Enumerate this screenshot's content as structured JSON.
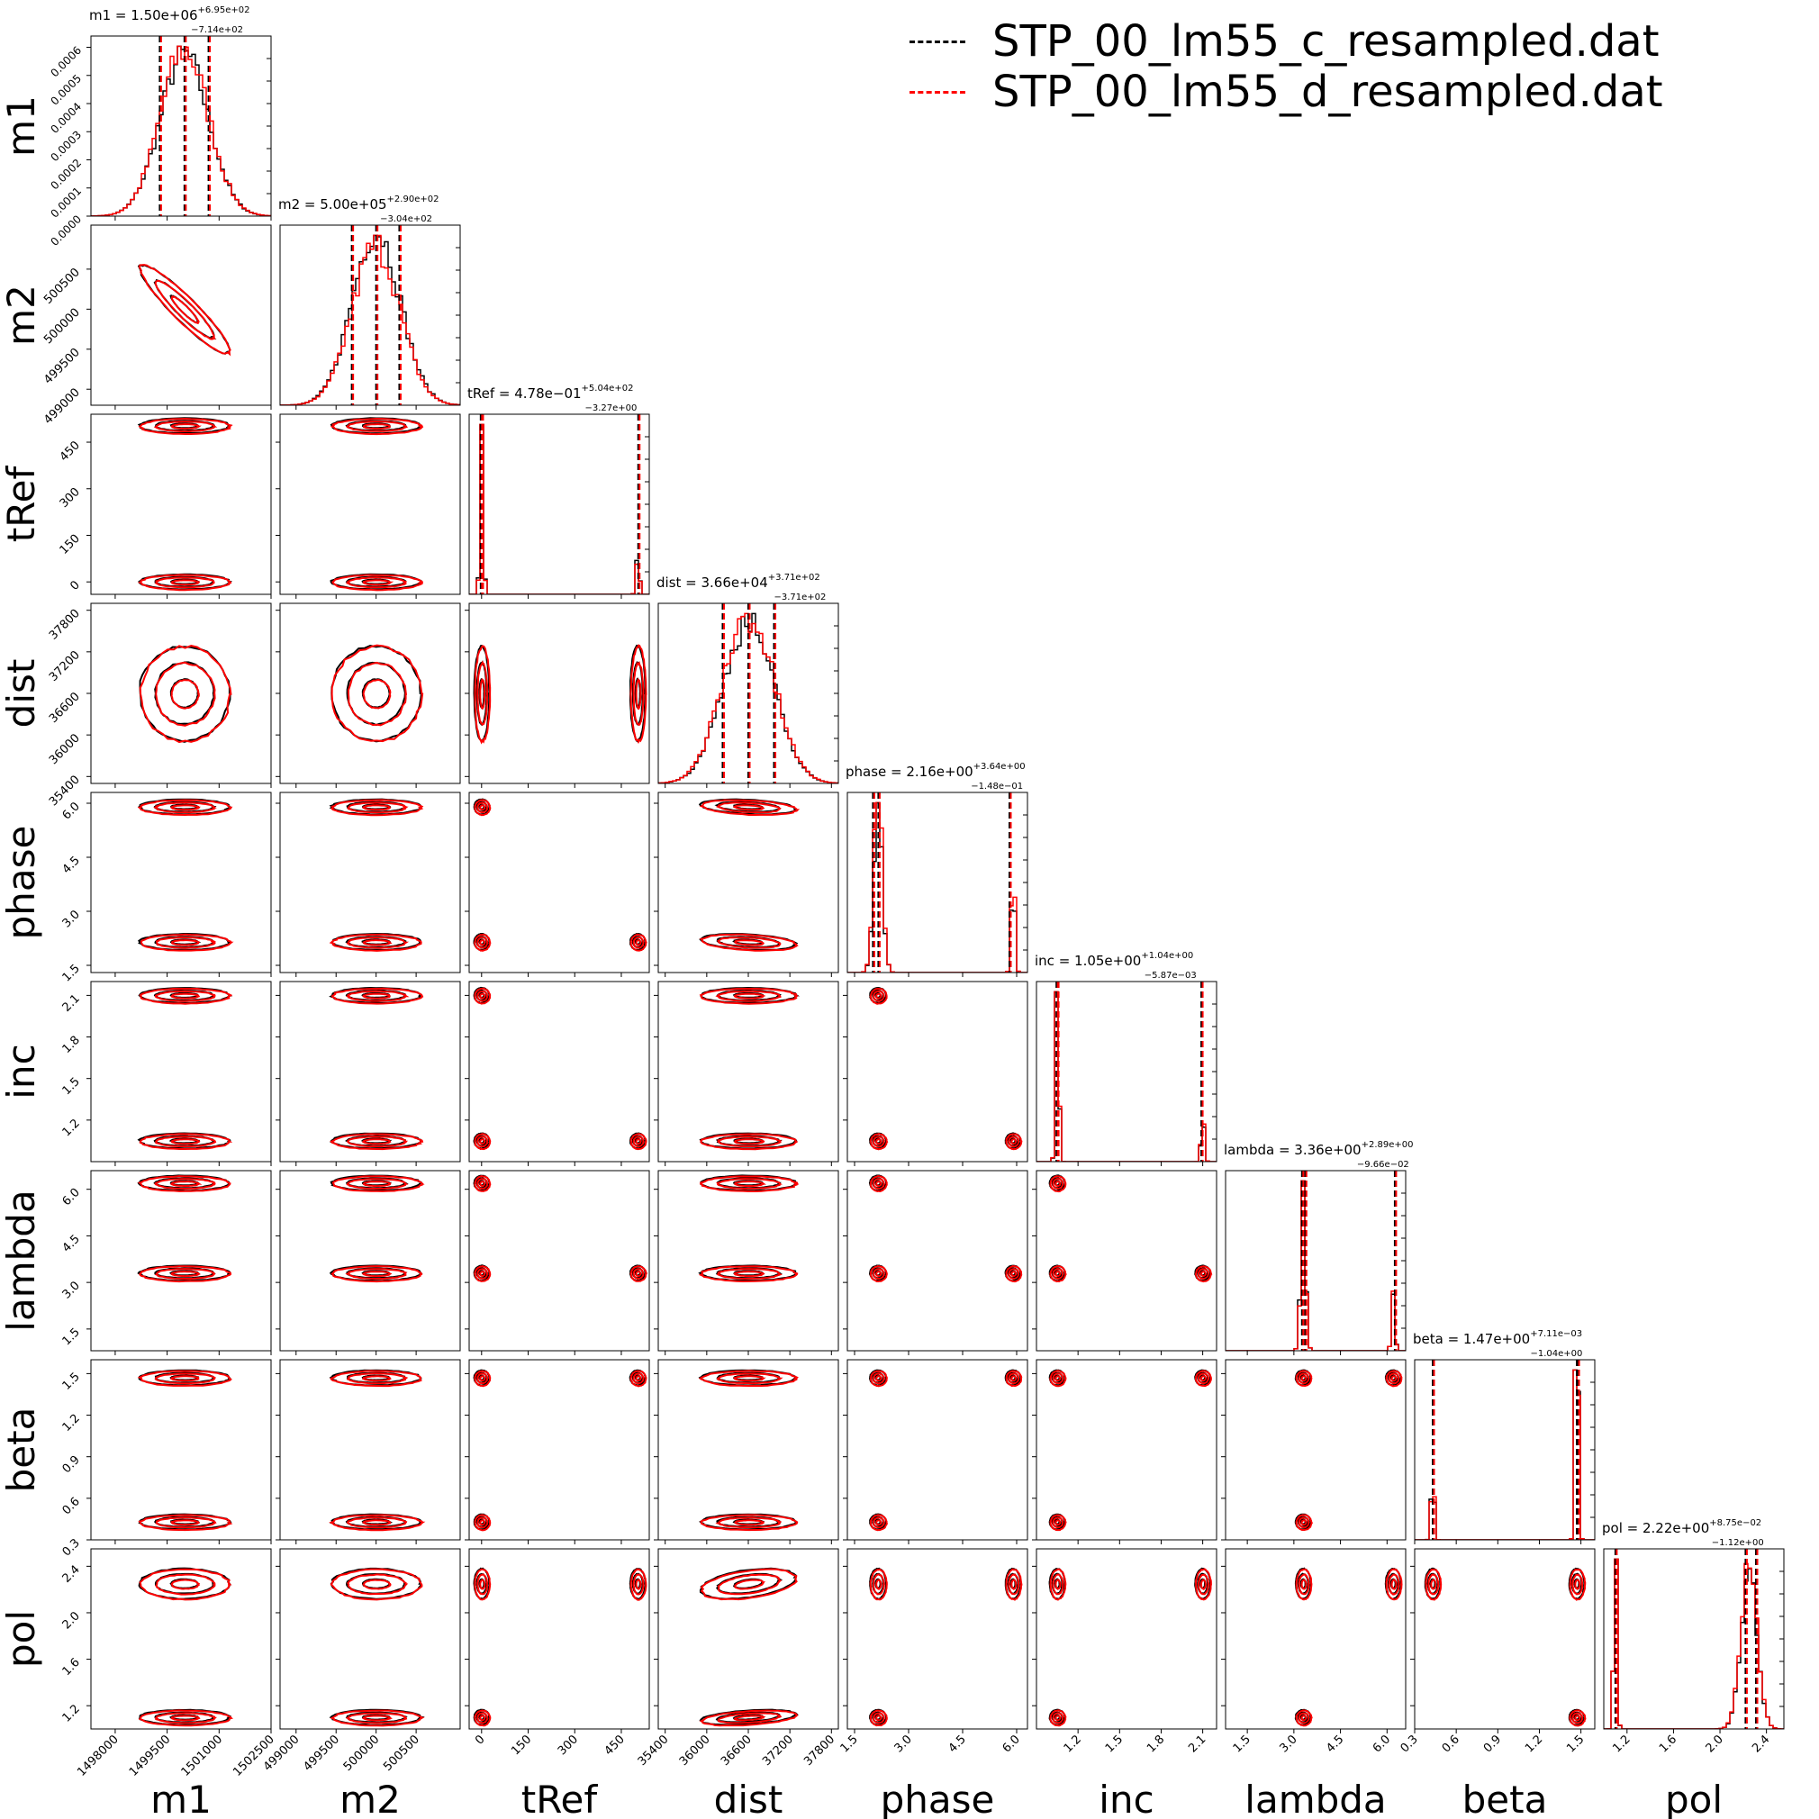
{
  "legend": [
    {
      "label": "STP_00_lm55_c_resampled.dat",
      "color": "#000000"
    },
    {
      "label": "STP_00_lm55_d_resampled.dat",
      "color": "#ff0000"
    }
  ],
  "colors": {
    "series_c": "#000000",
    "series_d": "#ff0000"
  },
  "chart_data": {
    "type": "corner",
    "parameters": [
      {
        "name": "m1",
        "range": [
          1497300,
          1502500
        ],
        "ticks": [
          1498000,
          1499500,
          1501000,
          1502500
        ],
        "tick_labels": [
          "1498000",
          "1499500",
          "1501000",
          "1502500"
        ],
        "title": "m1 = 1.50e+06",
        "sup": "+6.95e+02",
        "sub": "−7.14e+02",
        "median": 1500000,
        "q16": 1499286,
        "q84": 1500695,
        "hist_ylim": [
          0,
          0.00064
        ],
        "hist_ticks": [
          0.0,
          0.0001,
          0.0002,
          0.0003,
          0.0004,
          0.0005,
          0.0006
        ],
        "hist_tick_labels": [
          "0.0000",
          "0.0001",
          "0.0002",
          "0.0003",
          "0.0004",
          "0.0005",
          "0.0006"
        ],
        "modes": [
          {
            "center": 1500000,
            "sigma": 700,
            "weight": 1.0
          }
        ]
      },
      {
        "name": "m2",
        "range": [
          498800,
          501050
        ],
        "ticks": [
          499000,
          499500,
          500000,
          500500
        ],
        "tick_labels": [
          "499000",
          "499500",
          "500000",
          "500500"
        ],
        "left_tick_labels": [
          "0.0000",
          "500500",
          "500000",
          "499500",
          "499000"
        ],
        "title": "m2 = 5.00e+05",
        "sup": "+2.90e+02",
        "sub": "−3.04e+02",
        "median": 500000,
        "q16": 499696,
        "q84": 500290,
        "modes": [
          {
            "center": 500000,
            "sigma": 300,
            "weight": 1.0
          }
        ]
      },
      {
        "name": "tRef",
        "range": [
          -40,
          540
        ],
        "ticks": [
          0,
          150,
          300,
          450
        ],
        "tick_labels": [
          "0",
          "150",
          "300",
          "450"
        ],
        "title": "tRef = 4.78e−01",
        "sup": "+5.04e+02",
        "sub": "−3.27e+00",
        "median": 0.478,
        "q16": -2.8,
        "q84": 504.5,
        "modes": [
          {
            "center": 0.5,
            "sigma": 5,
            "weight": 0.8
          },
          {
            "center": 503,
            "sigma": 5,
            "weight": 0.2
          }
        ]
      },
      {
        "name": "dist",
        "range": [
          35300,
          37900
        ],
        "ticks": [
          35400,
          36000,
          36600,
          37200,
          37800
        ],
        "tick_labels": [
          "35400",
          "36000",
          "36600",
          "37200",
          "37800"
        ],
        "title": "dist = 3.66e+04",
        "sup": "+3.71e+02",
        "sub": "−3.71e+02",
        "median": 36600,
        "q16": 36229,
        "q84": 36971,
        "modes": [
          {
            "center": 36600,
            "sigma": 370,
            "weight": 1.0
          }
        ]
      },
      {
        "name": "phase",
        "range": [
          1.3,
          6.3
        ],
        "ticks": [
          1.5,
          3.0,
          4.5,
          6.0
        ],
        "tick_labels": [
          "1.5",
          "3.0",
          "4.5",
          "6.0"
        ],
        "title": "phase = 2.16e+00",
        "sup": "+3.64e+00",
        "sub": "−1.48e−01",
        "median": 2.16,
        "q16": 2.01,
        "q84": 5.8,
        "modes": [
          {
            "center": 2.15,
            "sigma": 0.12,
            "weight": 0.8
          },
          {
            "center": 5.9,
            "sigma": 0.05,
            "weight": 0.2
          }
        ]
      },
      {
        "name": "inc",
        "range": [
          0.9,
          2.2
        ],
        "ticks": [
          1.2,
          1.5,
          1.8,
          2.1
        ],
        "tick_labels": [
          "1.2",
          "1.5",
          "1.8",
          "2.1"
        ],
        "title": "inc = 1.05e+00",
        "sup": "+1.04e+00",
        "sub": "−5.87e−03",
        "median": 1.05,
        "q16": 1.044,
        "q84": 2.09,
        "modes": [
          {
            "center": 1.05,
            "sigma": 0.01,
            "weight": 0.8
          },
          {
            "center": 2.1,
            "sigma": 0.01,
            "weight": 0.2
          }
        ]
      },
      {
        "name": "lambda",
        "range": [
          0.8,
          6.6
        ],
        "ticks": [
          1.5,
          3.0,
          4.5,
          6.0
        ],
        "tick_labels": [
          "1.5",
          "3.0",
          "4.5",
          "6.0"
        ],
        "title": "lambda = 3.36e+00",
        "sup": "+2.89e+00",
        "sub": "−9.66e−02",
        "median": 3.36,
        "q16": 3.26,
        "q84": 6.25,
        "modes": [
          {
            "center": 3.3,
            "sigma": 0.08,
            "weight": 0.8
          },
          {
            "center": 6.2,
            "sigma": 0.05,
            "weight": 0.2
          }
        ]
      },
      {
        "name": "beta",
        "range": [
          0.3,
          1.6
        ],
        "ticks": [
          0.3,
          0.6,
          0.9,
          1.2,
          1.5
        ],
        "tick_labels": [
          "0.3",
          "0.6",
          "0.9",
          "1.2",
          "1.5"
        ],
        "title": "beta = 1.47e+00",
        "sup": "+7.11e−03",
        "sub": "−1.04e+00",
        "median": 1.47,
        "q16": 0.43,
        "q84": 1.477,
        "modes": [
          {
            "center": 0.43,
            "sigma": 0.008,
            "weight": 0.2
          },
          {
            "center": 1.47,
            "sigma": 0.008,
            "weight": 0.8
          }
        ]
      },
      {
        "name": "pol",
        "range": [
          1.0,
          2.55
        ],
        "ticks": [
          1.2,
          1.6,
          2.0,
          2.4
        ],
        "tick_labels": [
          "1.2",
          "1.6",
          "2.0",
          "2.4"
        ],
        "title": "pol = 2.22e+00",
        "sup": "+8.75e−02",
        "sub": "−1.12e+00",
        "median": 2.22,
        "q16": 1.1,
        "q84": 2.31,
        "modes": [
          {
            "center": 1.1,
            "sigma": 0.01,
            "weight": 0.2
          },
          {
            "center": 2.25,
            "sigma": 0.07,
            "weight": 0.8
          }
        ]
      }
    ],
    "series": [
      {
        "name": "STP_00_lm55_c_resampled.dat",
        "color": "#000000"
      },
      {
        "name": "STP_00_lm55_d_resampled.dat",
        "color": "#ff0000"
      }
    ],
    "correlations": [
      {
        "pair": [
          "m1",
          "m2"
        ],
        "rho": -0.93
      },
      {
        "pair": [
          "dist",
          "phase"
        ],
        "rho": -0.3
      },
      {
        "pair": [
          "dist",
          "pol"
        ],
        "rho": 0.4
      }
    ]
  }
}
